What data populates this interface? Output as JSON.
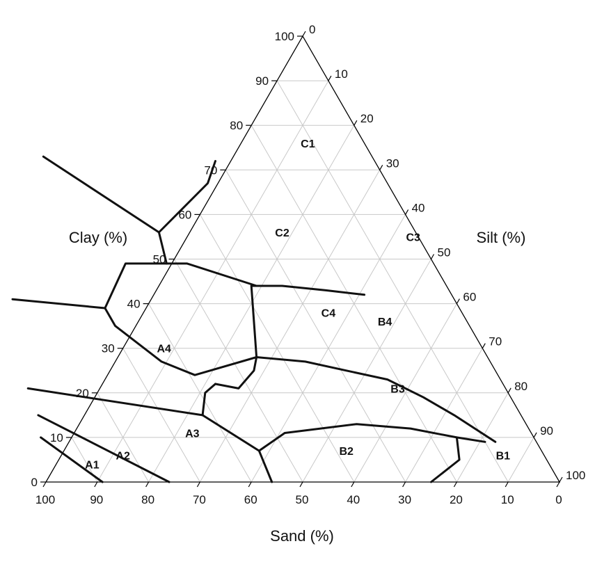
{
  "chart_data": {
    "type": "ternary",
    "axes": {
      "sand": {
        "label": "Sand (%)",
        "ticks": [
          "100",
          "90",
          "80",
          "70",
          "60",
          "50",
          "40",
          "30",
          "20",
          "10",
          "0"
        ]
      },
      "clay": {
        "label": "Clay (%)",
        "ticks": [
          "0",
          "10",
          "20",
          "30",
          "40",
          "50",
          "60",
          "70",
          "80",
          "90",
          "100"
        ]
      },
      "silt": {
        "label": "Silt (%)",
        "ticks": [
          "0",
          "10",
          "20",
          "30",
          "40",
          "50",
          "60",
          "70",
          "80",
          "90",
          "100"
        ]
      }
    },
    "grid": true,
    "zones": [
      {
        "label": "A1",
        "sand": 89,
        "clay": 4
      },
      {
        "label": "A2",
        "sand": 82,
        "clay": 6
      },
      {
        "label": "A3",
        "sand": 66,
        "clay": 11
      },
      {
        "label": "A4",
        "sand": 62,
        "clay": 30
      },
      {
        "label": "B1",
        "sand": 8,
        "clay": 6
      },
      {
        "label": "B2",
        "sand": 38,
        "clay": 7
      },
      {
        "label": "B3",
        "sand": 21,
        "clay": 21
      },
      {
        "label": "B4",
        "sand": 16,
        "clay": 36
      },
      {
        "label": "C1",
        "sand": 11,
        "clay": 76
      },
      {
        "label": "C2",
        "sand": 26,
        "clay": 56
      },
      {
        "label": "C3",
        "sand": 1,
        "clay": 55
      },
      {
        "label": "C4",
        "sand": 26,
        "clay": 38
      }
    ],
    "boundaries": [
      [
        [
          96,
          10
        ],
        [
          89,
          0
        ]
      ],
      [
        [
          94,
          15
        ],
        [
          76,
          0
        ]
      ],
      [
        [
          93,
          21
        ],
        [
          62,
          15
        ],
        [
          55,
          7
        ],
        [
          56,
          0
        ]
      ],
      [
        [
          62,
          15
        ],
        [
          59,
          20
        ],
        [
          56,
          22
        ]
      ],
      [
        [
          55,
          7
        ],
        [
          48,
          11
        ],
        [
          33,
          13
        ],
        [
          23,
          12
        ],
        [
          15,
          10
        ],
        [
          10,
          9
        ]
      ],
      [
        [
          15,
          10
        ],
        [
          17,
          5
        ],
        [
          25,
          0
        ]
      ],
      [
        [
          56,
          22
        ],
        [
          52,
          21
        ],
        [
          47,
          25
        ],
        [
          45,
          28
        ],
        [
          36,
          27
        ],
        [
          29,
          25
        ],
        [
          22,
          23
        ],
        [
          17,
          19
        ],
        [
          13,
          15
        ],
        [
          8,
          9
        ]
      ],
      [
        [
          45,
          28
        ],
        [
          38,
          44
        ],
        [
          32,
          44
        ],
        [
          24,
          43
        ],
        [
          17,
          42
        ]
      ],
      [
        [
          45,
          28
        ],
        [
          59,
          24
        ],
        [
          64,
          27
        ],
        [
          69,
          35
        ],
        [
          69,
          39
        ],
        [
          60,
          49
        ],
        [
          48,
          49
        ],
        [
          37,
          44
        ]
      ],
      [
        [
          86,
          41
        ],
        [
          69,
          39
        ]
      ],
      [
        [
          52,
          49
        ],
        [
          50,
          56
        ],
        [
          35,
          67
        ],
        [
          31,
          72
        ]
      ],
      [
        [
          50,
          56
        ],
        [
          64,
          73
        ]
      ]
    ]
  }
}
